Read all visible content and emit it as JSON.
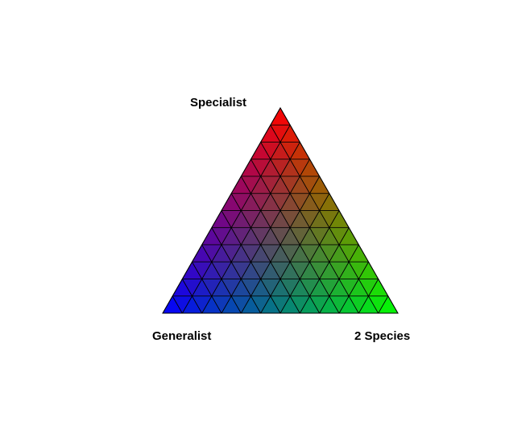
{
  "labels": {
    "top": "Specialist",
    "bottom_left": "Generalist",
    "bottom_right": "2 Species"
  },
  "legend": {
    "type": "ternary-color-key",
    "subdivisions": 12,
    "vertex_colors": {
      "top": "#ff0000",
      "bottom_left": "#0000ff",
      "bottom_right": "#00ff00"
    },
    "cell_stroke": "#000000"
  }
}
